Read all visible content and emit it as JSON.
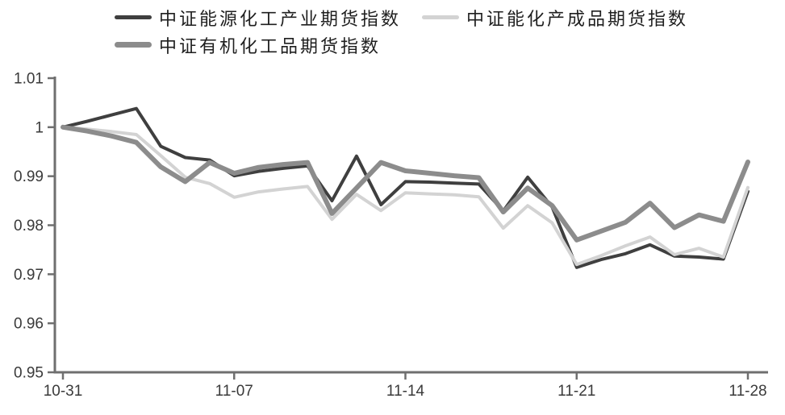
{
  "legend": {
    "items": [
      {
        "label": "中证能源化工产业期货指数",
        "color": "#3f3f3f",
        "thickness": 5
      },
      {
        "label": "中证能化产成品期货指数",
        "color": "#d3d3d3",
        "thickness": 5
      },
      {
        "label": "中证有机化工品期货指数",
        "color": "#8c8c8c",
        "thickness": 7
      }
    ]
  },
  "chart_data": {
    "type": "line",
    "title": "",
    "xlabel": "",
    "ylabel": "",
    "x": [
      "10-31",
      "11-01",
      "11-02",
      "11-03",
      "11-04",
      "11-05",
      "11-06",
      "11-07",
      "11-08",
      "11-09",
      "11-10",
      "11-11",
      "11-12",
      "11-13",
      "11-14",
      "11-15",
      "11-16",
      "11-17",
      "11-18",
      "11-19",
      "11-20",
      "11-21",
      "11-22",
      "11-23",
      "11-24",
      "11-25",
      "11-26",
      "11-27",
      "11-28"
    ],
    "series": [
      {
        "name": "中证能源化工产业期货指数",
        "color": "#3f3f3f",
        "width": 4,
        "values": [
          1.0,
          1.0012,
          1.0025,
          1.0038,
          0.9961,
          0.9938,
          0.9933,
          0.9901,
          0.991,
          0.9916,
          0.9921,
          0.985,
          0.9941,
          0.9842,
          0.9889,
          0.9888,
          0.9886,
          0.9884,
          0.9829,
          0.9898,
          0.9837,
          0.9714,
          0.973,
          0.9742,
          0.976,
          0.9737,
          0.9735,
          0.9731,
          0.9869
        ]
      },
      {
        "name": "中证能化产成品期货指数",
        "color": "#d3d3d3",
        "width": 4,
        "values": [
          1.0,
          0.9996,
          0.9991,
          0.9985,
          0.9942,
          0.9898,
          0.9885,
          0.9857,
          0.9868,
          0.9874,
          0.9879,
          0.9812,
          0.9863,
          0.983,
          0.9866,
          0.9864,
          0.9862,
          0.9858,
          0.9794,
          0.984,
          0.9805,
          0.972,
          0.9738,
          0.9758,
          0.9776,
          0.974,
          0.9753,
          0.9735,
          0.9877
        ]
      },
      {
        "name": "中证有机化工品期货指数",
        "color": "#8c8c8c",
        "width": 6,
        "values": [
          1.0,
          0.9992,
          0.9982,
          0.9969,
          0.9919,
          0.9889,
          0.9928,
          0.9906,
          0.9918,
          0.9924,
          0.9928,
          0.9824,
          0.9876,
          0.9928,
          0.9911,
          0.9906,
          0.9901,
          0.9897,
          0.9827,
          0.9876,
          0.984,
          0.977,
          0.9788,
          0.9806,
          0.9845,
          0.9795,
          0.9821,
          0.9808,
          0.9929
        ]
      }
    ],
    "xticks": [
      "10-31",
      "11-07",
      "11-14",
      "11-21",
      "11-28"
    ],
    "xtick_indices": [
      0,
      7,
      14,
      21,
      28
    ],
    "yticks": [
      1.01,
      1,
      0.99,
      0.98,
      0.97,
      0.96,
      0.95
    ],
    "ytick_labels": [
      "1.01",
      "1",
      "0.99",
      "0.98",
      "0.97",
      "0.96",
      "0.95"
    ],
    "ylim": [
      0.95,
      1.01
    ],
    "grid": false,
    "legend_position": "top",
    "axis_color": "#6f6f6f",
    "tick_label_color": "#3a3a3a"
  }
}
